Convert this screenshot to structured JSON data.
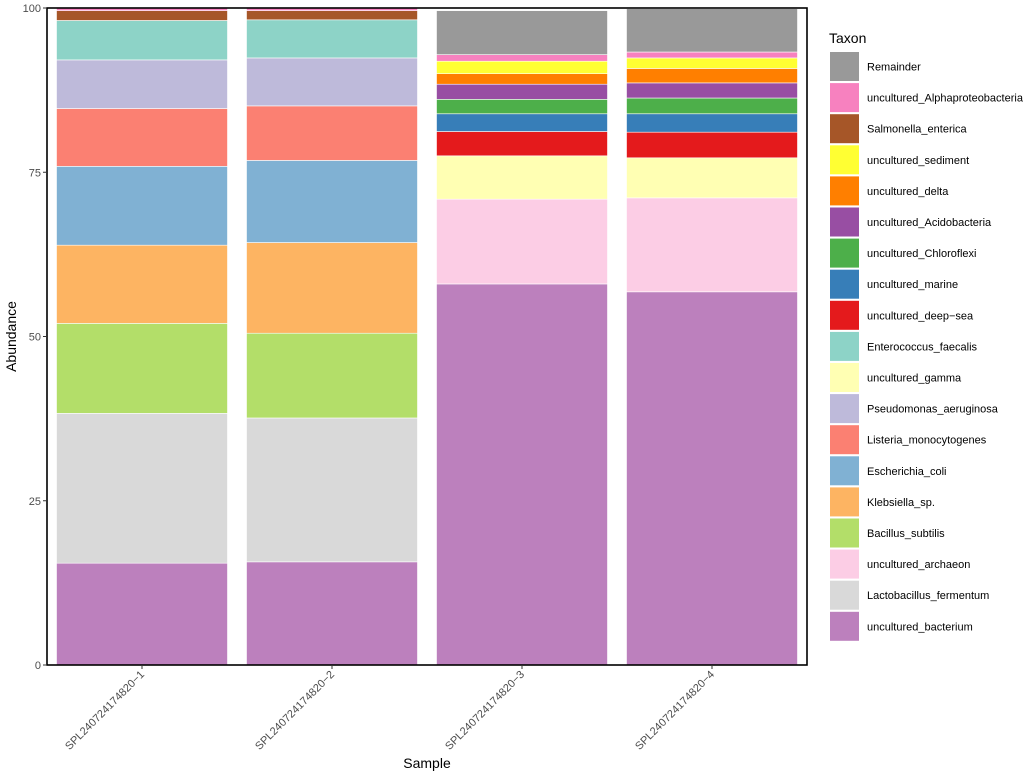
{
  "chart_data": {
    "type": "bar",
    "stacked": true,
    "xlabel": "Sample",
    "ylabel": "Abundance",
    "ylim": [
      0,
      100
    ],
    "yticks": [
      0,
      25,
      50,
      75,
      100
    ],
    "categories": [
      "SPL240724174820−1",
      "SPL240724174820−2",
      "SPL240724174820−3",
      "SPL240724174820−4"
    ],
    "legend_title": "Taxon",
    "legend_position": "right",
    "grid": false,
    "series": [
      {
        "name": "uncultured_bacterium",
        "color": "#BC80BD",
        "values": [
          15.5,
          15.7,
          58.0,
          56.8
        ]
      },
      {
        "name": "Lactobacillus_fermentum",
        "color": "#D9D9D9",
        "values": [
          22.8,
          21.9,
          0,
          0
        ]
      },
      {
        "name": "uncultured_archaeon",
        "color": "#FCCDE5",
        "values": [
          0,
          0,
          12.9,
          14.3
        ]
      },
      {
        "name": "Bacillus_subtilis",
        "color": "#B3DE69",
        "values": [
          13.7,
          12.9,
          0,
          0
        ]
      },
      {
        "name": "Klebsiella_sp.",
        "color": "#FDB462",
        "values": [
          11.9,
          13.8,
          0,
          0
        ]
      },
      {
        "name": "Escherichia_coli",
        "color": "#80B1D3",
        "values": [
          12.0,
          12.5,
          0,
          0
        ]
      },
      {
        "name": "Listeria_monocytogenes",
        "color": "#FB8072",
        "values": [
          8.8,
          8.3,
          0,
          0
        ]
      },
      {
        "name": "Pseudomonas_aeruginosa",
        "color": "#BEBADA",
        "values": [
          7.4,
          7.3,
          0,
          0
        ]
      },
      {
        "name": "uncultured_gamma",
        "color": "#FFFFB3",
        "values": [
          0,
          0,
          6.6,
          6.1
        ]
      },
      {
        "name": "Enterococcus_faecalis",
        "color": "#8DD3C7",
        "values": [
          6.0,
          5.8,
          0,
          0
        ]
      },
      {
        "name": "uncultured_deep−sea",
        "color": "#E41A1C",
        "values": [
          0,
          0,
          3.7,
          3.9
        ]
      },
      {
        "name": "uncultured_marine",
        "color": "#377EB8",
        "values": [
          0,
          0,
          2.7,
          2.8
        ]
      },
      {
        "name": "uncultured_Chloroflexi",
        "color": "#4DAF4A",
        "values": [
          0,
          0,
          2.2,
          2.4
        ]
      },
      {
        "name": "uncultured_Acidobacteria",
        "color": "#984EA3",
        "values": [
          0,
          0,
          2.3,
          2.3
        ]
      },
      {
        "name": "uncultured_delta",
        "color": "#FF7F00",
        "values": [
          0,
          0,
          1.6,
          2.2
        ]
      },
      {
        "name": "uncultured_sediment",
        "color": "#FFFF33",
        "values": [
          0,
          0,
          1.9,
          1.6
        ]
      },
      {
        "name": "Salmonella_enterica",
        "color": "#A65628",
        "values": [
          1.5,
          1.4,
          0,
          0
        ]
      },
      {
        "name": "uncultured_Alphaproteobacteria",
        "color": "#F781BF",
        "values": [
          0.4,
          0.4,
          1.0,
          0.9
        ]
      },
      {
        "name": "Remainder",
        "color": "#999999",
        "values": [
          0,
          0,
          6.7,
          6.6
        ]
      }
    ]
  }
}
